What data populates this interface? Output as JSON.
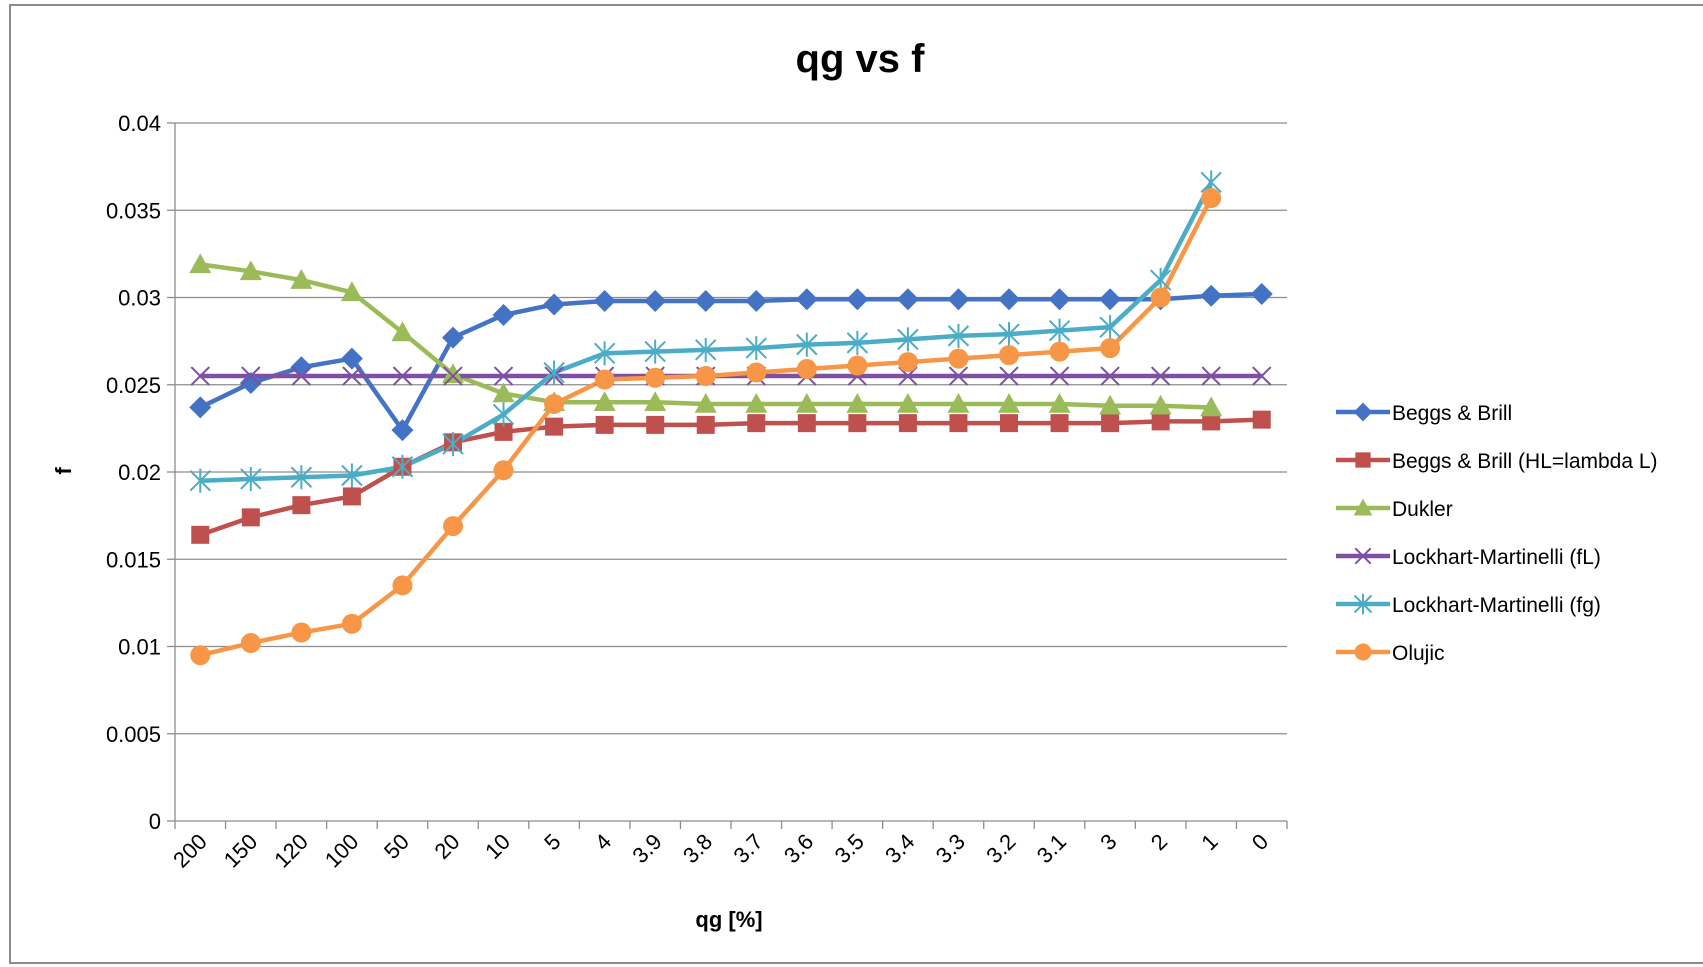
{
  "chart_data": {
    "type": "line",
    "title": "qg vs f",
    "xlabel": "qg [%]",
    "ylabel": "f",
    "categories": [
      "200",
      "150",
      "120",
      "100",
      "50",
      "20",
      "10",
      "5",
      "4",
      "3.9",
      "3.8",
      "3.7",
      "3.6",
      "3.5",
      "3.4",
      "3.3",
      "3.2",
      "3.1",
      "3",
      "2",
      "1",
      "0"
    ],
    "ylim": [
      0,
      0.04
    ],
    "yticks": [
      "0",
      "0.005",
      "0.01",
      "0.015",
      "0.02",
      "0.025",
      "0.03",
      "0.035",
      "0.04"
    ],
    "grid": "horizontal",
    "legend_position": "right",
    "series": [
      {
        "name": "Beggs & Brill",
        "color": "#4472C4",
        "marker": "diamond",
        "values": [
          0.0237,
          0.0251,
          0.026,
          0.0265,
          0.0224,
          0.0277,
          0.029,
          0.0296,
          0.0298,
          0.0298,
          0.0298,
          0.0298,
          0.0299,
          0.0299,
          0.0299,
          0.0299,
          0.0299,
          0.0299,
          0.0299,
          0.0299,
          0.0301,
          0.0302
        ]
      },
      {
        "name": "Beggs & Brill (HL=lambda L)",
        "color": "#C0504D",
        "marker": "square",
        "values": [
          0.0164,
          0.0174,
          0.0181,
          0.0186,
          0.0203,
          0.0217,
          0.0223,
          0.0226,
          0.0227,
          0.0227,
          0.0227,
          0.0228,
          0.0228,
          0.0228,
          0.0228,
          0.0228,
          0.0228,
          0.0228,
          0.0228,
          0.0229,
          0.0229,
          0.023
        ]
      },
      {
        "name": "Dukler",
        "color": "#9BBB59",
        "marker": "triangle",
        "values": [
          0.0319,
          0.0315,
          0.031,
          0.0303,
          0.028,
          0.0256,
          0.0245,
          0.024,
          0.024,
          0.024,
          0.0239,
          0.0239,
          0.0239,
          0.0239,
          0.0239,
          0.0239,
          0.0239,
          0.0239,
          0.0238,
          0.0238,
          0.0237,
          null
        ]
      },
      {
        "name": "Lockhart-Martinelli (fL)",
        "color": "#7F4FA1",
        "marker": "x",
        "values": [
          0.0255,
          0.0255,
          0.0255,
          0.0255,
          0.0255,
          0.0255,
          0.0255,
          0.0255,
          0.0255,
          0.0255,
          0.0255,
          0.0255,
          0.0255,
          0.0255,
          0.0255,
          0.0255,
          0.0255,
          0.0255,
          0.0255,
          0.0255,
          0.0255,
          0.0255
        ]
      },
      {
        "name": "Lockhart-Martinelli (fg)",
        "color": "#4BACC6",
        "marker": "star",
        "values": [
          0.0195,
          0.0196,
          0.0197,
          0.0198,
          0.0203,
          0.0216,
          0.0233,
          0.0257,
          0.0268,
          0.0269,
          0.027,
          0.0271,
          0.0273,
          0.0274,
          0.0276,
          0.0278,
          0.0279,
          0.0281,
          0.0283,
          0.031,
          0.0366,
          null
        ]
      },
      {
        "name": "Olujic",
        "color": "#F79646",
        "marker": "circle",
        "values": [
          0.0095,
          0.0102,
          0.0108,
          0.0113,
          0.0135,
          0.0169,
          0.0201,
          0.0239,
          0.0253,
          0.0254,
          0.0255,
          0.0257,
          0.0259,
          0.0261,
          0.0263,
          0.0265,
          0.0267,
          0.0269,
          0.0271,
          0.03,
          0.0357,
          null
        ]
      }
    ]
  }
}
